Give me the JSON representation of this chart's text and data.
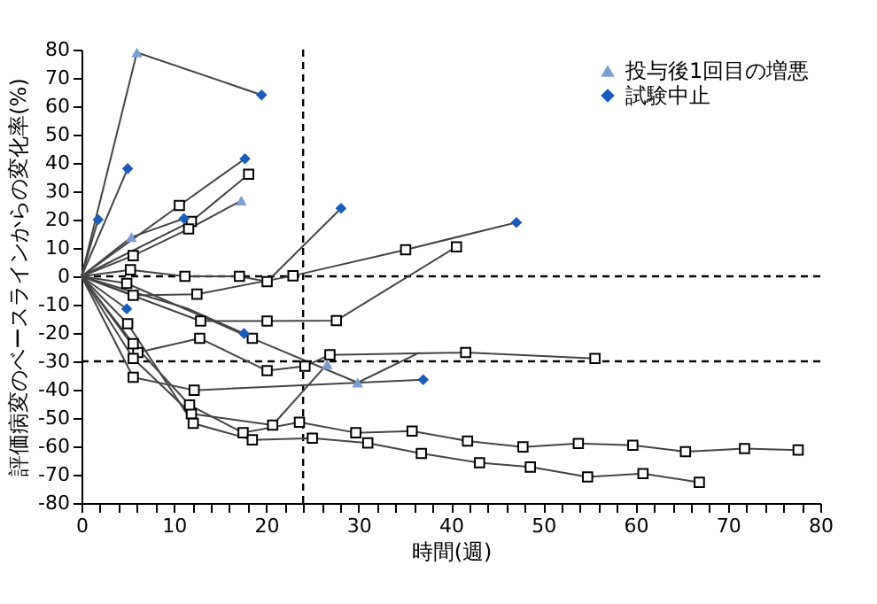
{
  "chart_data": {
    "type": "line",
    "xlabel": "時間(週)",
    "ylabel": "評価病変のベースラインからの変化率(%)",
    "xlim": [
      0,
      80
    ],
    "ylim": [
      -80,
      80
    ],
    "xticks": [
      0,
      {
        "value": 2,
        "label": null
      },
      {
        "value": 4,
        "label": null
      },
      {
        "value": 6,
        "label": null
      },
      {
        "value": 8,
        "label": null
      },
      10,
      {
        "value": 12,
        "label": null
      },
      {
        "value": 14,
        "label": null
      },
      {
        "value": 16,
        "label": null
      },
      {
        "value": 18,
        "label": null
      },
      20,
      {
        "value": 22,
        "label": null
      },
      {
        "value": 24,
        "label": null
      },
      {
        "value": 26,
        "label": null
      },
      {
        "value": 28,
        "label": null
      },
      30,
      {
        "value": 32,
        "label": null
      },
      {
        "value": 34,
        "label": null
      },
      {
        "value": 36,
        "label": null
      },
      {
        "value": 38,
        "label": null
      },
      40,
      {
        "value": 42,
        "label": null
      },
      {
        "value": 44,
        "label": null
      },
      {
        "value": 46,
        "label": null
      },
      {
        "value": 48,
        "label": null
      },
      50,
      {
        "value": 52,
        "label": null
      },
      {
        "value": 54,
        "label": null
      },
      {
        "value": 56,
        "label": null
      },
      {
        "value": 58,
        "label": null
      },
      60,
      {
        "value": 62,
        "label": null
      },
      {
        "value": 64,
        "label": null
      },
      {
        "value": 66,
        "label": null
      },
      {
        "value": 68,
        "label": null
      },
      70,
      {
        "value": 72,
        "label": null
      },
      {
        "value": 74,
        "label": null
      },
      {
        "value": 76,
        "label": null
      },
      {
        "value": 78,
        "label": null
      },
      80
    ],
    "yticks": [
      -80,
      -70,
      -60,
      -50,
      -40,
      -30,
      -20,
      -10,
      0,
      10,
      20,
      30,
      40,
      50,
      60,
      70,
      80
    ],
    "grid": false,
    "legend": "top right",
    "ref_lines": [
      {
        "axis": "y",
        "value": 0,
        "label": null,
        "line_style": "dashed"
      },
      {
        "axis": "y",
        "value": -30,
        "label": null,
        "line_style": "dashed"
      },
      {
        "axis": "x",
        "value": 24,
        "label": null,
        "line_style": "dashed"
      }
    ],
    "series": [
      {
        "type": "line",
        "color": "#444444",
        "marker": "none",
        "x": [
          0,
          6,
          19.5
        ],
        "values": [
          0,
          79,
          64
        ]
      },
      {
        "type": "line",
        "color": "#444444",
        "marker": "none",
        "x": [
          0,
          5
        ],
        "values": [
          0,
          38
        ]
      },
      {
        "type": "line",
        "color": "#444444",
        "marker": "none",
        "x": [
          0,
          1.8
        ],
        "values": [
          0,
          20
        ]
      },
      {
        "type": "line",
        "color": "#444444",
        "marker": "none",
        "x": [
          0,
          10.6,
          17.7
        ],
        "values": [
          0,
          25,
          41.5
        ]
      },
      {
        "type": "line",
        "color": "#444444",
        "marker": "none",
        "x": [
          0,
          11.9,
          18.1
        ],
        "values": [
          0,
          19.4,
          36
        ]
      },
      {
        "type": "line",
        "color": "#444444",
        "marker": "none",
        "x": [
          0,
          5.4,
          11.1
        ],
        "values": [
          0,
          13.8,
          20.4
        ]
      },
      {
        "type": "line",
        "color": "#444444",
        "marker": "none",
        "x": [
          0,
          5.6,
          11.6,
          17.3
        ],
        "values": [
          0,
          7.3,
          16.7,
          26.7
        ]
      },
      {
        "type": "line",
        "color": "#444444",
        "marker": "none",
        "x": [
          0,
          5.3,
          11.2,
          17.1,
          20.1,
          28.1
        ],
        "values": [
          0,
          2.3,
          0,
          0,
          -1.9,
          24
        ]
      },
      {
        "type": "line",
        "color": "#444444",
        "marker": "none",
        "x": [
          0,
          5.6,
          12.5,
          22.9,
          35.1,
          47.1
        ],
        "values": [
          0,
          -6.7,
          -6.3,
          0.2,
          9.4,
          19
        ]
      },
      {
        "type": "line",
        "color": "#444444",
        "marker": "none",
        "x": [
          0,
          12.9,
          20.1,
          27.6,
          40.6
        ],
        "values": [
          0,
          -15.8,
          -15.8,
          -15.6,
          10.4
        ]
      },
      {
        "type": "line",
        "color": "#444444",
        "marker": "none",
        "x": [
          0,
          4.9
        ],
        "values": [
          0,
          -11.5
        ]
      },
      {
        "type": "line",
        "color": "#444444",
        "marker": "none",
        "x": [
          0,
          11.6,
          17.6
        ],
        "values": [
          0,
          -11.5,
          -20.2
        ]
      },
      {
        "type": "line",
        "color": "#444444",
        "marker": "none",
        "x": [
          0,
          4.9,
          18.5,
          29.9,
          36.6
        ],
        "values": [
          0,
          -2.5,
          -21.9,
          -37.5,
          -26.9
        ]
      },
      {
        "type": "line",
        "color": "#444444",
        "marker": "none",
        "x": [
          0,
          6.1,
          12.8,
          20.1,
          24.2,
          26.9,
          41.6,
          55.6
        ],
        "values": [
          0,
          -26.9,
          -21.9,
          -33.3,
          -31.7,
          -27.7,
          -26.9,
          -29
        ]
      },
      {
        "type": "line",
        "color": "#444444",
        "marker": "none",
        "x": [
          0,
          5.6,
          12.2,
          37
        ],
        "values": [
          0,
          -35.6,
          -40.2,
          -36.5
        ]
      },
      {
        "type": "line",
        "color": "#444444",
        "marker": "none",
        "x": [
          0,
          5.6,
          11.9,
          20.7,
          26.6
        ],
        "values": [
          0,
          -29,
          -48.5,
          -52.5,
          -31
        ]
      },
      {
        "type": "line",
        "color": "#444444",
        "marker": "none",
        "x": [
          0,
          5.6,
          11.7,
          17.5,
          23.6,
          29.7,
          35.8,
          41.8,
          47.8,
          53.8,
          59.7,
          65.4,
          71.8,
          77.6
        ],
        "values": [
          0,
          -23.8,
          -45.4,
          -55.2,
          -51.5,
          -55.2,
          -54.6,
          -58.1,
          -60.2,
          -59,
          -59.6,
          -61.9,
          -60.8,
          -61.3
        ]
      },
      {
        "type": "line",
        "color": "#444444",
        "marker": "none",
        "x": [
          0,
          5,
          12.1,
          18.5,
          25,
          31,
          36.8,
          43.1,
          48.6,
          54.8,
          60.8,
          66.9
        ],
        "values": [
          0,
          -16.7,
          -51.9,
          -57.7,
          -57.1,
          -58.8,
          -62.5,
          -65.8,
          -67.3,
          -70.8,
          -69.6,
          -72.7
        ]
      },
      {
        "type": "scatter",
        "color": "#000000",
        "marker": "square",
        "x": [
          10.6,
          11.9,
          18.1,
          11.6,
          5.6,
          5.3,
          11.2,
          17.1,
          20.1,
          5.6,
          12.5,
          22.9,
          35.1,
          12.9,
          20.1,
          27.6,
          40.6,
          4.9,
          18.5,
          6.1,
          12.8,
          20.1,
          24.2,
          26.9,
          41.6,
          55.6,
          5.6,
          12.2,
          5.6,
          11.9,
          20.7,
          5.6,
          11.7,
          17.5,
          23.6,
          29.7,
          35.8,
          41.8,
          47.8,
          53.8,
          59.7,
          65.4,
          71.8,
          77.6,
          5,
          12.1,
          18.5,
          25,
          31,
          36.8,
          43.1,
          48.6,
          54.8,
          60.8,
          66.9
        ],
        "values": [
          25,
          19.4,
          36,
          16.7,
          7.3,
          2.3,
          0,
          0,
          -1.9,
          -6.7,
          -6.3,
          0.2,
          9.4,
          -15.8,
          -15.8,
          -15.6,
          10.4,
          -2.5,
          -21.9,
          -26.9,
          -21.9,
          -33.3,
          -31.7,
          -27.7,
          -26.9,
          -29,
          -35.6,
          -40.2,
          -29,
          -48.5,
          -52.5,
          -23.8,
          -45.4,
          -55.2,
          -51.5,
          -55.2,
          -54.6,
          -58.1,
          -60.2,
          -59,
          -59.6,
          -61.9,
          -60.8,
          -61.3,
          -16.7,
          -51.9,
          -57.7,
          -57.1,
          -58.8,
          -62.5,
          -65.8,
          -67.3,
          -70.8,
          -69.6,
          -72.7
        ]
      },
      {
        "type": "scatter",
        "name": "投与後1回目の増悪",
        "color": "#7b9fd4",
        "marker": "triangle",
        "x": [
          6,
          5.4,
          17.3,
          29.9,
          26.6
        ],
        "values": [
          79,
          13.8,
          26.7,
          -37.5,
          -31
        ]
      },
      {
        "type": "scatter",
        "name": "試験中止",
        "color": "#1a5cb8",
        "marker": "diamond",
        "x": [
          19.5,
          5,
          1.8,
          17.7,
          11.1,
          28.1,
          47.1,
          4.9,
          17.6,
          37
        ],
        "values": [
          64,
          38,
          20,
          41.5,
          20.4,
          24,
          19,
          -11.5,
          -20.2,
          -36.5
        ]
      }
    ]
  }
}
